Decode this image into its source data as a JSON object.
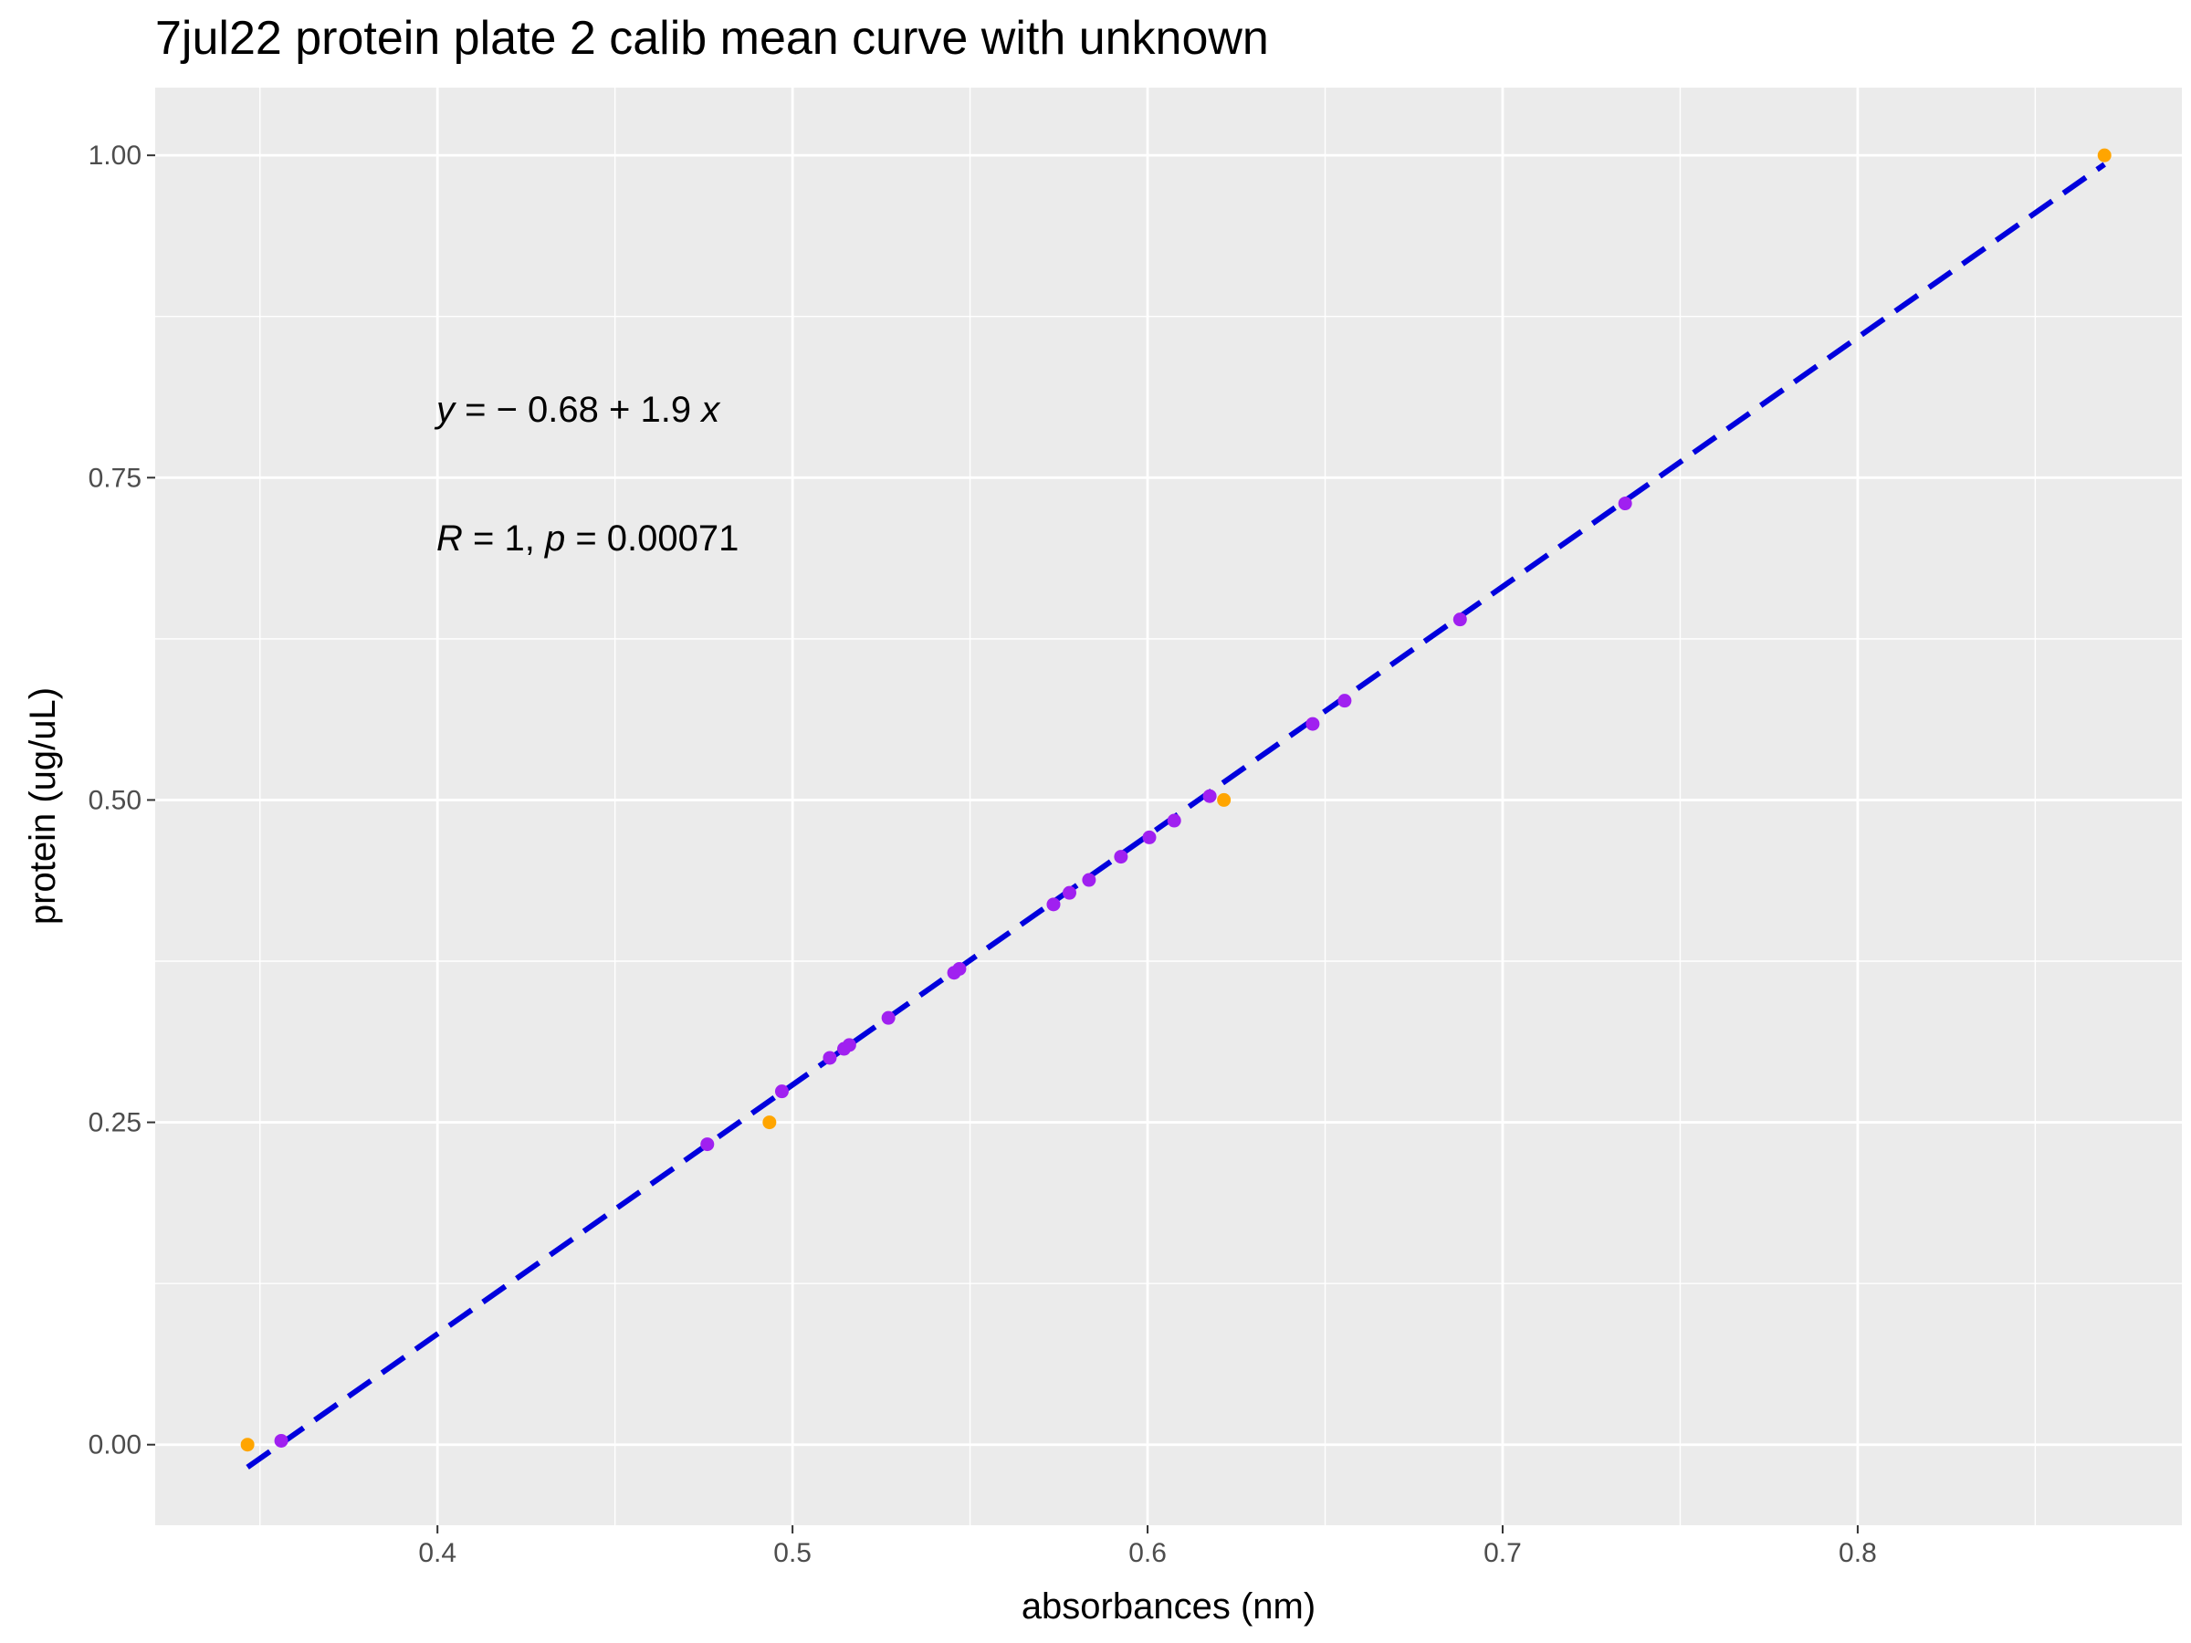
{
  "chart_data": {
    "type": "scatter",
    "title": "7jul22 protein plate 2 calib mean curve with unknown",
    "xlabel": "absorbances (nm)",
    "ylabel": "protein (ug/uL)",
    "xlim": [
      0.3205,
      0.8913
    ],
    "ylim": [
      -0.0625,
      1.0525
    ],
    "x_ticks": [
      0.4,
      0.5,
      0.6,
      0.7,
      0.8
    ],
    "x_tick_labels": [
      "0.4",
      "0.5",
      "0.6",
      "0.7",
      "0.8"
    ],
    "y_ticks": [
      0.0,
      0.25,
      0.5,
      0.75,
      1.0
    ],
    "y_tick_labels": [
      "0.00",
      "0.25",
      "0.50",
      "0.75",
      "1.00"
    ],
    "grid": true,
    "background_color": "#ebebeb",
    "annotations": {
      "equation": {
        "y_var": "y",
        "eq_rest": " = − 0.68 + 1.9 ",
        "x_var": "x"
      },
      "stats": {
        "r_var": "R",
        "r_rest": " = 1, ",
        "p_var": "p",
        "p_rest": " = 0.00071"
      }
    },
    "fit_line": {
      "intercept": -0.68,
      "slope": 1.9,
      "x_range": [
        0.3465,
        0.8695
      ],
      "y_range": [
        -0.0175,
        0.993
      ],
      "color": "#0000dd",
      "style": "dashed"
    },
    "series": [
      {
        "color": "#ffa500",
        "points": [
          {
            "x": 0.3465,
            "y": 0.0
          },
          {
            "x": 0.4935,
            "y": 0.25
          },
          {
            "x": 0.6215,
            "y": 0.5
          },
          {
            "x": 0.8695,
            "y": 1.0
          }
        ]
      },
      {
        "color": "#a020f0",
        "points": [
          {
            "x": 0.356,
            "y": 0.003
          },
          {
            "x": 0.476,
            "y": 0.233
          },
          {
            "x": 0.497,
            "y": 0.274
          },
          {
            "x": 0.5105,
            "y": 0.3
          },
          {
            "x": 0.5145,
            "y": 0.307
          },
          {
            "x": 0.516,
            "y": 0.31
          },
          {
            "x": 0.527,
            "y": 0.331
          },
          {
            "x": 0.5455,
            "y": 0.366
          },
          {
            "x": 0.547,
            "y": 0.369
          },
          {
            "x": 0.5735,
            "y": 0.419
          },
          {
            "x": 0.578,
            "y": 0.428
          },
          {
            "x": 0.5835,
            "y": 0.438
          },
          {
            "x": 0.5925,
            "y": 0.456
          },
          {
            "x": 0.6005,
            "y": 0.471
          },
          {
            "x": 0.6075,
            "y": 0.484
          },
          {
            "x": 0.6175,
            "y": 0.503
          },
          {
            "x": 0.6465,
            "y": 0.559
          },
          {
            "x": 0.6555,
            "y": 0.577
          },
          {
            "x": 0.688,
            "y": 0.64
          },
          {
            "x": 0.7345,
            "y": 0.73
          }
        ]
      }
    ]
  }
}
